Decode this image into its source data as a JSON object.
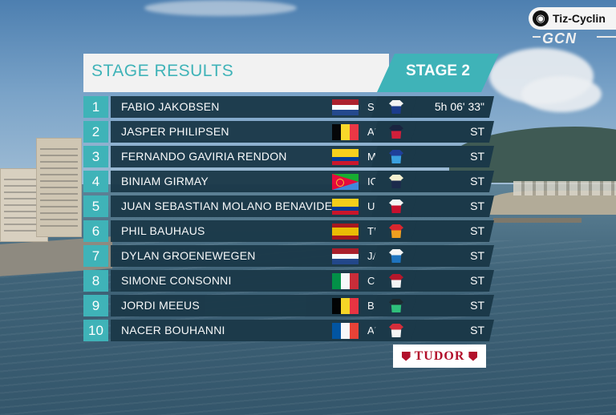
{
  "broadcast": {
    "logo_text": "Tiz-Cyclin",
    "channel_text": "GCN"
  },
  "results": {
    "title": "STAGE RESULTS",
    "stage_label": "STAGE 2",
    "rows": [
      {
        "pos": "1",
        "name": "FABIO JAKOBSEN",
        "team": "SOQ",
        "time": "5h 06' 33\"",
        "flag": "netherlands",
        "jersey_colors": [
          "#f2f2f2",
          "#1c3c8c"
        ]
      },
      {
        "pos": "2",
        "name": "JASPER PHILIPSEN",
        "team": "ADC",
        "time": "ST",
        "flag": "belgium",
        "jersey_colors": [
          "#1a2440",
          "#d01f3a"
        ]
      },
      {
        "pos": "3",
        "name": "FERNANDO GAVIRIA RENDON",
        "team": "MOV",
        "time": "ST",
        "flag": "colombia",
        "jersey_colors": [
          "#1f3f9a",
          "#3aa0e0"
        ]
      },
      {
        "pos": "4",
        "name": "BINIAM GIRMAY",
        "team": "ICW",
        "time": "ST",
        "flag": "eritrea",
        "jersey_colors": [
          "#f5f0d0",
          "#1c2a4c"
        ]
      },
      {
        "pos": "5",
        "name": "JUAN SEBASTIAN MOLANO BENAVIDES",
        "team": "UAD",
        "time": "ST",
        "flag": "colombia",
        "jersey_colors": [
          "#f4f4f4",
          "#c8102e"
        ]
      },
      {
        "pos": "6",
        "name": "PHIL BAUHAUS",
        "team": "TBV",
        "time": "ST",
        "flag": "spain",
        "jersey_colors": [
          "#d9262e",
          "#f0a020"
        ]
      },
      {
        "pos": "7",
        "name": "DYLAN GROENEWEGEN",
        "team": "JAY",
        "time": "ST",
        "flag": "netherlands",
        "jersey_colors": [
          "#f4f4f4",
          "#1e73be"
        ]
      },
      {
        "pos": "8",
        "name": "SIMONE CONSONNI",
        "team": "COF",
        "time": "ST",
        "flag": "italy",
        "jersey_colors": [
          "#b5172b",
          "#f4f4f4"
        ]
      },
      {
        "pos": "9",
        "name": "JORDI MEEUS",
        "team": "BOH",
        "time": "ST",
        "flag": "belgium",
        "jersey_colors": [
          "#1d2a30",
          "#2fbf7a"
        ]
      },
      {
        "pos": "10",
        "name": "NACER BOUHANNI",
        "team": "ARK",
        "time": "ST",
        "flag": "france",
        "jersey_colors": [
          "#d42d3a",
          "#f4f4f4"
        ]
      }
    ]
  },
  "sponsor": {
    "label": "TUDOR",
    "color": "#b2102b"
  },
  "theme": {
    "accent": "#3fb3b8",
    "row_bg": "#1b3949",
    "header_bg": "#f2f2f2"
  }
}
